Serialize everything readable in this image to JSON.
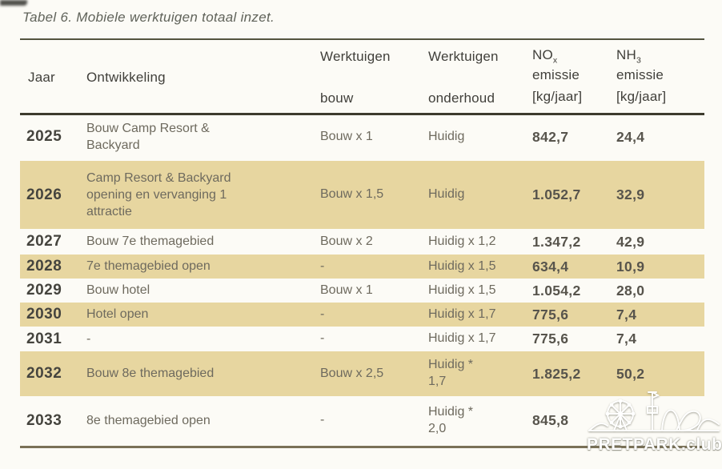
{
  "title": "Tabel 6. Mobiele werktuigen totaal inzet.",
  "colors": {
    "highlight_row": "#e7d6a0",
    "rule_dark": "#3d3b2e",
    "rule_bottom": "#7a7157",
    "body_text": "#6e6a5e"
  },
  "watermark": {
    "text": "PRETPARK.club",
    "icon": "amusement-park-line-art"
  },
  "table": {
    "headers": {
      "jaar": "Jaar",
      "ontwikkeling": "Ontwikkeling",
      "werktuigen_bouw": {
        "line1": "Werktuigen",
        "line2": "bouw"
      },
      "werktuigen_onderhoud": {
        "line1": "Werktuigen",
        "line2": "onderhoud"
      },
      "nox": {
        "base": "NO",
        "sub": "x",
        "line2": "emissie",
        "unit": "[kg/jaar]"
      },
      "nh3": {
        "base": "NH",
        "sub": "3",
        "line2": "emissie",
        "unit": "[kg/jaar]"
      }
    },
    "rows": [
      {
        "jaar": "2025",
        "ontwikkeling": "Bouw Camp Resort & Backyard",
        "bouw": "Bouw x 1",
        "onderhoud": "Huidig",
        "nox": "842,7",
        "nh3": "24,4",
        "highlight": false
      },
      {
        "jaar": "2026",
        "ontwikkeling": "Camp Resort & Backyard opening en vervanging 1 attractie",
        "bouw": "Bouw x 1,5",
        "onderhoud": "Huidig",
        "nox": "1.052,7",
        "nh3": "32,9",
        "highlight": true
      },
      {
        "jaar": "2027",
        "ontwikkeling": "Bouw 7e themagebied",
        "bouw": "Bouw x 2",
        "onderhoud": "Huidig x 1,2",
        "nox": "1.347,2",
        "nh3": "42,9",
        "highlight": false
      },
      {
        "jaar": "2028",
        "ontwikkeling": "7e themagebied open",
        "bouw": "-",
        "onderhoud": "Huidig x 1,5",
        "nox": "634,4",
        "nh3": "10,9",
        "highlight": true
      },
      {
        "jaar": "2029",
        "ontwikkeling": "Bouw hotel",
        "bouw": "Bouw x 1",
        "onderhoud": "Huidig x 1,5",
        "nox": "1.054,2",
        "nh3": "28,0",
        "highlight": false
      },
      {
        "jaar": "2030",
        "ontwikkeling": "Hotel open",
        "bouw": "-",
        "onderhoud": "Huidig x 1,7",
        "nox": "775,6",
        "nh3": "7,4",
        "highlight": true
      },
      {
        "jaar": "2031",
        "ontwikkeling": "-",
        "bouw": "-",
        "onderhoud": "Huidig x 1,7",
        "nox": "775,6",
        "nh3": "7,4",
        "highlight": false
      },
      {
        "jaar": "2032",
        "ontwikkeling": "Bouw 8e themagebied",
        "bouw": "Bouw x 2,5",
        "onderhoud": "Huidig *\n1,7",
        "nox": "1.825,2",
        "nh3": "50,2",
        "highlight": true
      },
      {
        "jaar": "2033",
        "ontwikkeling": "8e themagebied open",
        "bouw": "-",
        "onderhoud": "Huidig *\n2,0",
        "nox": "845,8",
        "nh3": "",
        "highlight": false
      }
    ]
  }
}
